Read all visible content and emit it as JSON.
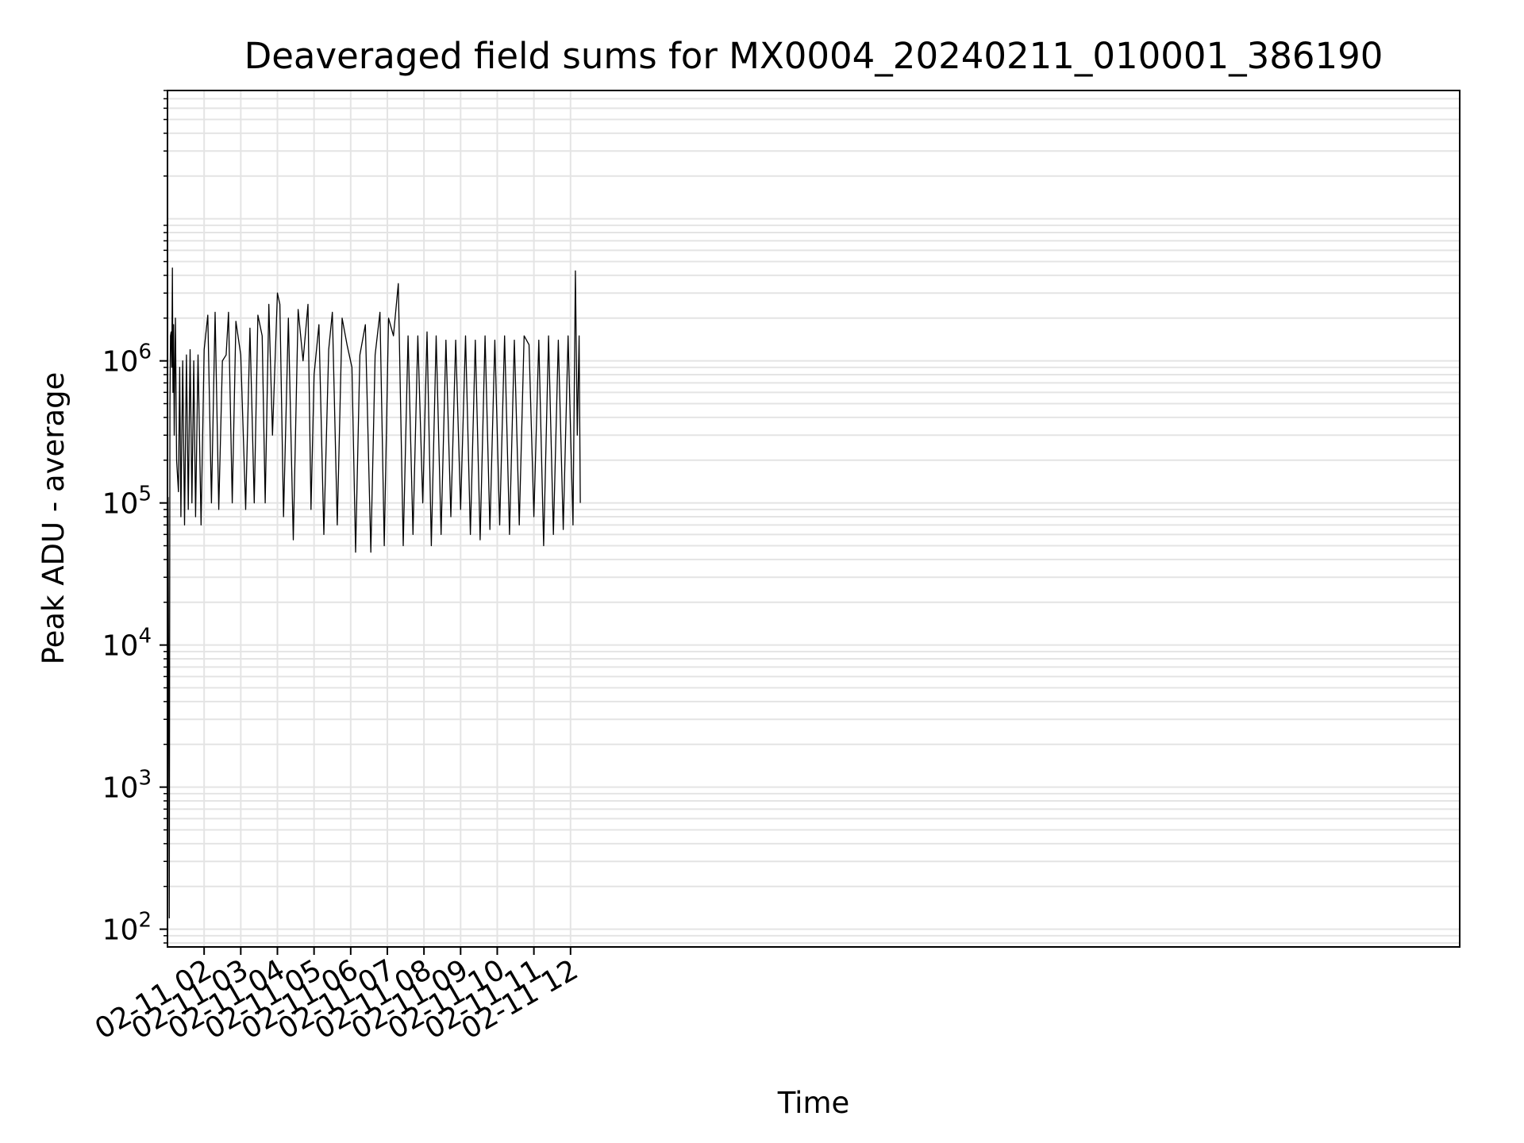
{
  "chart_data": {
    "type": "line",
    "title": "Deaveraged field sums for MX0004_20240211_010001_386190",
    "xlabel": "Time",
    "ylabel": "Peak ADU - average",
    "yscale": "log",
    "ylim": [
      75,
      80000000
    ],
    "xlim": [
      "2024-02-11T01:00",
      "2024-02-12T12:16"
    ],
    "grid": true,
    "line_color": "#000000",
    "x_ticks": [
      {
        "at": "2024-02-11T02:00",
        "label": "02-11 02"
      },
      {
        "at": "2024-02-11T03:00",
        "label": "02-11 03"
      },
      {
        "at": "2024-02-11T04:00",
        "label": "02-11 04"
      },
      {
        "at": "2024-02-11T05:00",
        "label": "02-11 05"
      },
      {
        "at": "2024-02-11T06:00",
        "label": "02-11 06"
      },
      {
        "at": "2024-02-11T07:00",
        "label": "02-11 07"
      },
      {
        "at": "2024-02-11T08:00",
        "label": "02-11 08"
      },
      {
        "at": "2024-02-11T09:00",
        "label": "02-11 09"
      },
      {
        "at": "2024-02-11T10:00",
        "label": "02-11 10"
      },
      {
        "at": "2024-02-11T11:00",
        "label": "02-11 11"
      },
      {
        "at": "2024-02-11T12:00",
        "label": "02-11 12"
      }
    ],
    "y_ticks": [
      {
        "value": 100,
        "base": "10",
        "exp": "2"
      },
      {
        "value": 1000,
        "base": "10",
        "exp": "3"
      },
      {
        "value": 10000,
        "base": "10",
        "exp": "4"
      },
      {
        "value": 100000,
        "base": "10",
        "exp": "5"
      },
      {
        "value": 1000000,
        "base": "10",
        "exp": "6"
      }
    ],
    "series": [
      {
        "x": [
          "2024-02-11T01:01",
          "2024-02-11T01:03",
          "2024-02-11T01:04",
          "2024-02-11T01:05",
          "2024-02-11T01:06",
          "2024-02-11T01:07",
          "2024-02-11T01:08",
          "2024-02-11T01:09",
          "2024-02-11T01:10",
          "2024-02-11T01:11",
          "2024-02-11T01:12",
          "2024-02-11T01:13",
          "2024-02-11T01:15",
          "2024-02-11T01:18",
          "2024-02-11T01:20",
          "2024-02-11T01:22",
          "2024-02-11T01:25",
          "2024-02-11T01:28",
          "2024-02-11T01:31",
          "2024-02-11T01:34",
          "2024-02-11T01:37",
          "2024-02-11T01:40",
          "2024-02-11T01:43",
          "2024-02-11T01:46",
          "2024-02-11T01:50",
          "2024-02-11T01:55",
          "2024-02-11T02:00",
          "2024-02-11T02:06",
          "2024-02-11T02:12",
          "2024-02-11T02:18",
          "2024-02-11T02:24",
          "2024-02-11T02:30",
          "2024-02-11T02:36",
          "2024-02-11T02:40",
          "2024-02-11T02:46",
          "2024-02-11T02:52",
          "2024-02-11T03:00",
          "2024-02-11T03:08",
          "2024-02-11T03:15",
          "2024-02-11T03:22",
          "2024-02-11T03:28",
          "2024-02-11T03:35",
          "2024-02-11T03:40",
          "2024-02-11T03:46",
          "2024-02-11T03:52",
          "2024-02-11T04:00",
          "2024-02-11T04:04",
          "2024-02-11T04:10",
          "2024-02-11T04:18",
          "2024-02-11T04:26",
          "2024-02-11T04:34",
          "2024-02-11T04:42",
          "2024-02-11T04:50",
          "2024-02-11T04:55",
          "2024-02-11T05:00",
          "2024-02-11T05:08",
          "2024-02-11T05:16",
          "2024-02-11T05:24",
          "2024-02-11T05:30",
          "2024-02-11T05:38",
          "2024-02-11T05:46",
          "2024-02-11T05:54",
          "2024-02-11T06:02",
          "2024-02-11T06:08",
          "2024-02-11T06:15",
          "2024-02-11T06:24",
          "2024-02-11T06:33",
          "2024-02-11T06:40",
          "2024-02-11T06:48",
          "2024-02-11T06:55",
          "2024-02-11T07:02",
          "2024-02-11T07:10",
          "2024-02-11T07:18",
          "2024-02-11T07:26",
          "2024-02-11T07:34",
          "2024-02-11T07:42",
          "2024-02-11T07:50",
          "2024-02-11T07:58",
          "2024-02-11T08:05",
          "2024-02-11T08:12",
          "2024-02-11T08:20",
          "2024-02-11T08:28",
          "2024-02-11T08:36",
          "2024-02-11T08:44",
          "2024-02-11T08:52",
          "2024-02-11T09:00",
          "2024-02-11T09:08",
          "2024-02-11T09:16",
          "2024-02-11T09:24",
          "2024-02-11T09:32",
          "2024-02-11T09:40",
          "2024-02-11T09:48",
          "2024-02-11T09:56",
          "2024-02-11T10:04",
          "2024-02-11T10:12",
          "2024-02-11T10:20",
          "2024-02-11T10:28",
          "2024-02-11T10:36",
          "2024-02-11T10:44",
          "2024-02-11T10:52",
          "2024-02-11T11:00",
          "2024-02-11T11:08",
          "2024-02-11T11:16",
          "2024-02-11T11:24",
          "2024-02-11T11:32",
          "2024-02-11T11:40",
          "2024-02-11T11:48",
          "2024-02-11T11:56",
          "2024-02-11T12:04",
          "2024-02-11T12:08",
          "2024-02-11T12:11",
          "2024-02-11T12:14",
          "2024-02-11T12:16"
        ],
        "y": [
          110000,
          120,
          500000,
          1500000,
          1600000,
          900000,
          4500000,
          600000,
          1800000,
          300000,
          800000,
          2000000,
          200000,
          120000,
          900000,
          80000,
          1000000,
          70000,
          1100000,
          90000,
          1200000,
          100000,
          1000000,
          80000,
          1100000,
          70000,
          1200000,
          2100000,
          100000,
          2200000,
          90000,
          1000000,
          1100000,
          2200000,
          100000,
          1900000,
          1100000,
          90000,
          1700000,
          100000,
          2100000,
          1500000,
          100000,
          2500000,
          300000,
          3000000,
          2500000,
          80000,
          2000000,
          55000,
          2300000,
          1000000,
          2500000,
          90000,
          800000,
          1800000,
          60000,
          1200000,
          2200000,
          70000,
          2000000,
          1300000,
          900000,
          45000,
          1100000,
          1800000,
          45000,
          1100000,
          2200000,
          50000,
          2000000,
          1500000,
          3500000,
          50000,
          1500000,
          60000,
          1500000,
          100000,
          1600000,
          50000,
          1500000,
          60000,
          1400000,
          80000,
          1400000,
          90000,
          1500000,
          60000,
          1400000,
          55000,
          1500000,
          65000,
          1400000,
          70000,
          1500000,
          60000,
          1400000,
          70000,
          1500000,
          1300000,
          80000,
          1400000,
          50000,
          1500000,
          60000,
          1400000,
          65000,
          1500000,
          70000,
          4300000,
          300000,
          1500000,
          100000
        ]
      }
    ]
  }
}
